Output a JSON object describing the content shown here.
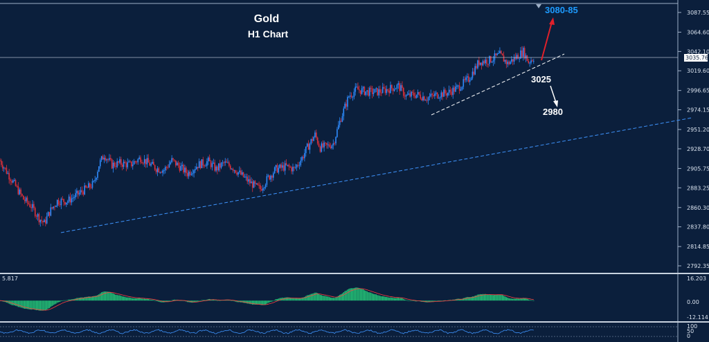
{
  "chart_data": {
    "type": "candlestick",
    "title": "Gold",
    "subtitle": "H1 Chart",
    "price_axis": {
      "ylim": [
        2780,
        3097
      ],
      "tick_labels": [
        "3087.55",
        "3064.60",
        "3042.10",
        "3019.60",
        "2996.65",
        "2974.15",
        "2951.20",
        "2928.70",
        "2905.75",
        "2883.25",
        "2860.30",
        "2837.80",
        "2814.85",
        "2792.35"
      ],
      "current_price": "3035.76"
    },
    "annotations": [
      {
        "text": "3080-85",
        "color": "#1e9bff"
      },
      {
        "text": "3025",
        "color": "#ffffff"
      },
      {
        "text": "2980",
        "color": "#ffffff"
      }
    ],
    "price_path": [
      [
        0,
        2915
      ],
      [
        6,
        2900
      ],
      [
        12,
        2885
      ],
      [
        18,
        2870
      ],
      [
        24,
        2862
      ],
      [
        30,
        2848
      ],
      [
        34,
        2842
      ],
      [
        38,
        2855
      ],
      [
        44,
        2868
      ],
      [
        52,
        2868
      ],
      [
        60,
        2876
      ],
      [
        66,
        2882
      ],
      [
        72,
        2888
      ],
      [
        76,
        2910
      ],
      [
        80,
        2922
      ],
      [
        86,
        2910
      ],
      [
        92,
        2912
      ],
      [
        100,
        2910
      ],
      [
        108,
        2918
      ],
      [
        114,
        2912
      ],
      [
        120,
        2906
      ],
      [
        126,
        2904
      ],
      [
        132,
        2915
      ],
      [
        138,
        2908
      ],
      [
        144,
        2900
      ],
      [
        152,
        2910
      ],
      [
        160,
        2914
      ],
      [
        166,
        2905
      ],
      [
        172,
        2912
      ],
      [
        178,
        2908
      ],
      [
        184,
        2900
      ],
      [
        190,
        2892
      ],
      [
        196,
        2885
      ],
      [
        200,
        2882
      ],
      [
        206,
        2895
      ],
      [
        212,
        2905
      ],
      [
        220,
        2908
      ],
      [
        226,
        2905
      ],
      [
        232,
        2918
      ],
      [
        236,
        2930
      ],
      [
        242,
        2945
      ],
      [
        246,
        2930
      ],
      [
        252,
        2932
      ],
      [
        256,
        2935
      ],
      [
        262,
        2965
      ],
      [
        268,
        2990
      ],
      [
        274,
        2998
      ],
      [
        282,
        2995
      ],
      [
        290,
        2995
      ],
      [
        298,
        2998
      ],
      [
        306,
        3002
      ],
      [
        312,
        2990
      ],
      [
        320,
        2992
      ],
      [
        328,
        2988
      ],
      [
        336,
        2992
      ],
      [
        344,
        2994
      ],
      [
        352,
        3000
      ],
      [
        360,
        3010
      ],
      [
        368,
        3030
      ],
      [
        376,
        3032
      ],
      [
        384,
        3038
      ],
      [
        390,
        3028
      ],
      [
        396,
        3035
      ],
      [
        402,
        3042
      ],
      [
        406,
        3030
      ],
      [
        410,
        3035
      ]
    ],
    "macd": {
      "label_top": "16.203",
      "label_mid": "0.00",
      "label_bottom": "-12.114",
      "value_label": "5.817",
      "ylim": [
        -12.114,
        16.203
      ]
    },
    "osc": {
      "label_top": "100",
      "label_mid": "50",
      "label_bottom": "0"
    },
    "time_labels": [
      "",
      "",
      "",
      "",
      "",
      "",
      "",
      "",
      "",
      "",
      "",
      "",
      "",
      "",
      "",
      "",
      "",
      ""
    ],
    "colors": {
      "background": "#0b1f3c",
      "bull": "#2f8cff",
      "bear": "#e0303a",
      "trendline": "#3f95ff",
      "macd_bar": "#26d07c",
      "signal": "#ff4040",
      "arrow_up": "#e0202a",
      "arrow_down": "#ffffff"
    }
  }
}
